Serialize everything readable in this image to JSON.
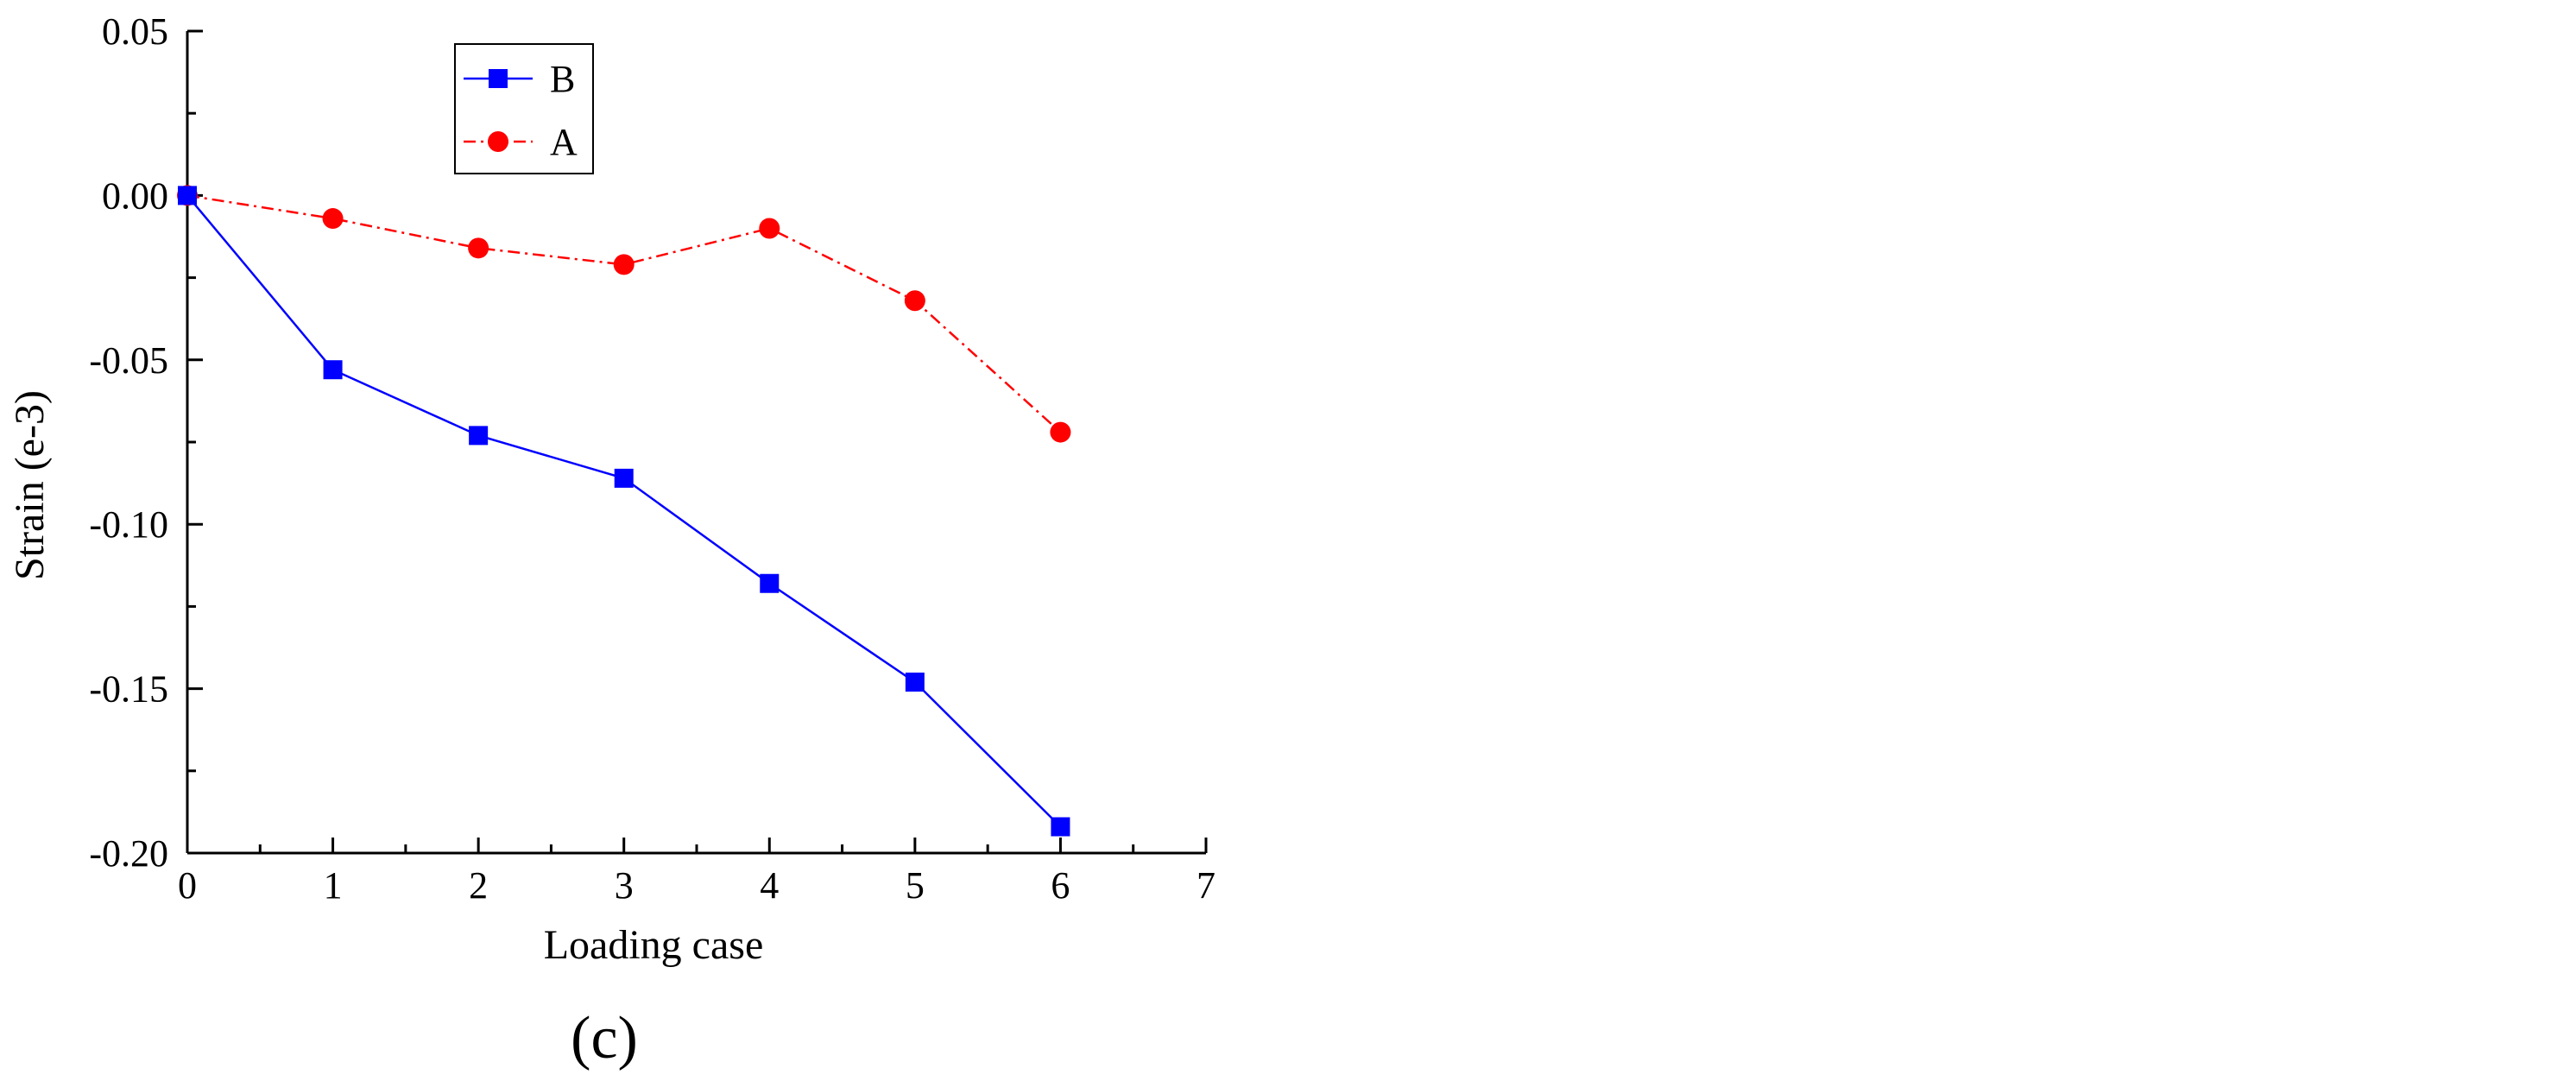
{
  "chart_data": {
    "type": "line",
    "title": "",
    "xlabel": "Loading case",
    "ylabel": "Strain (e-3)",
    "panel_label": "(c)",
    "xlim": [
      0,
      7
    ],
    "ylim": [
      -0.2,
      0.05
    ],
    "x_ticks": [
      0,
      1,
      2,
      3,
      4,
      5,
      6,
      7
    ],
    "x_tick_labels": [
      "0",
      "1",
      "2",
      "3",
      "4",
      "5",
      "6",
      "7"
    ],
    "y_ticks": [
      0.05,
      0.0,
      -0.05,
      -0.1,
      -0.15,
      -0.2
    ],
    "y_tick_labels": [
      "0.05",
      "0.00",
      "-0.05",
      "-0.10",
      "-0.15",
      "-0.20"
    ],
    "grid": false,
    "legend_position": "top-left",
    "x": [
      0,
      1,
      2,
      3,
      4,
      5,
      6
    ],
    "series": [
      {
        "name": "B",
        "values": [
          0.0,
          -0.053,
          -0.073,
          -0.086,
          -0.118,
          -0.148,
          -0.192
        ],
        "color": "#0000ff",
        "marker": "square",
        "line_style": "solid"
      },
      {
        "name": "A",
        "values": [
          0.0,
          -0.007,
          -0.016,
          -0.021,
          -0.01,
          -0.032,
          -0.072
        ],
        "color": "#ff0000",
        "marker": "circle",
        "line_style": "dash-dot"
      }
    ]
  }
}
